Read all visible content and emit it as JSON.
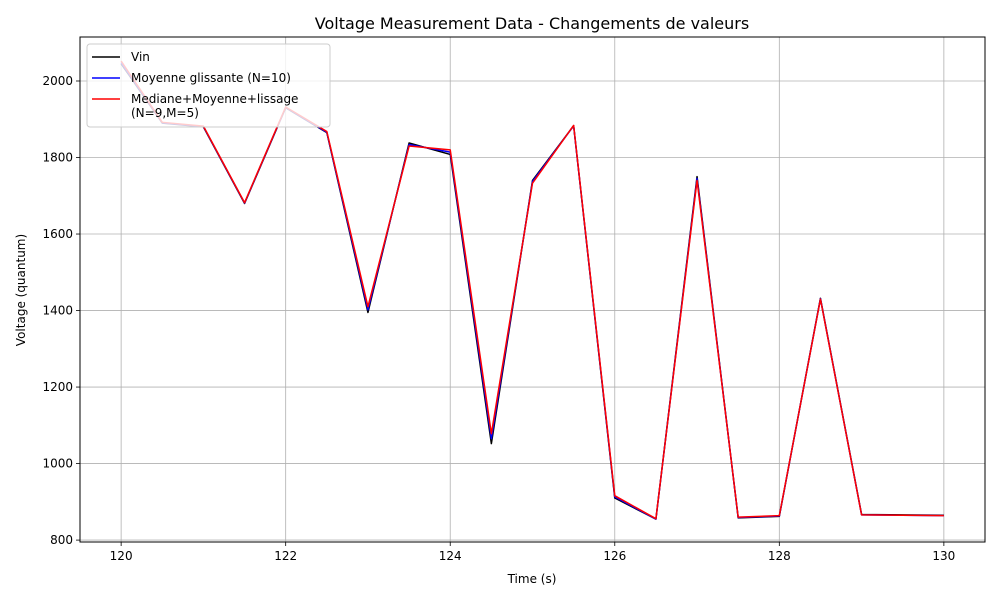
{
  "chart_data": {
    "type": "line",
    "title": "Voltage Measurement Data - Changements de valeurs",
    "xlabel": "Time (s)",
    "ylabel": "Voltage (quantum)",
    "xlim": [
      119.5,
      130.5
    ],
    "ylim": [
      795,
      2115
    ],
    "xticks": [
      120,
      122,
      124,
      126,
      128,
      130
    ],
    "yticks": [
      800,
      1000,
      1200,
      1400,
      1600,
      1800,
      2000
    ],
    "grid": true,
    "legend_position": "top-left",
    "x": [
      120,
      120.5,
      121,
      121.5,
      122,
      122.5,
      123,
      123.5,
      124,
      124.5,
      125,
      125.5,
      126,
      126.5,
      127,
      127.5,
      128,
      128.5,
      129,
      129.5,
      130
    ],
    "series": [
      {
        "name": "Vin",
        "color": "#000000",
        "values": [
          2045,
          1890,
          1880,
          1680,
          1930,
          1865,
          1395,
          1838,
          1808,
          1052,
          1740,
          1883,
          910,
          855,
          1750,
          858,
          862,
          1432,
          867,
          866,
          865
        ]
      },
      {
        "name": "Moyenne glissante (N=10)",
        "color": "#0000ff",
        "values": [
          2048,
          1891,
          1881,
          1681,
          1931,
          1866,
          1402,
          1834,
          1814,
          1065,
          1737,
          1883,
          913,
          855,
          1745,
          859,
          863,
          1431,
          866,
          865,
          864
        ]
      },
      {
        "name": "Mediane+Moyenne+lissage\n(N=9,M=5)",
        "label_lines": [
          "Mediane+Moyenne+lissage",
          "(N=9,M=5)"
        ],
        "color": "#ff0000",
        "values": [
          2052,
          1892,
          1882,
          1682,
          1932,
          1868,
          1410,
          1830,
          1820,
          1078,
          1733,
          1884,
          916,
          856,
          1740,
          860,
          864,
          1430,
          866,
          865,
          864
        ]
      }
    ]
  }
}
